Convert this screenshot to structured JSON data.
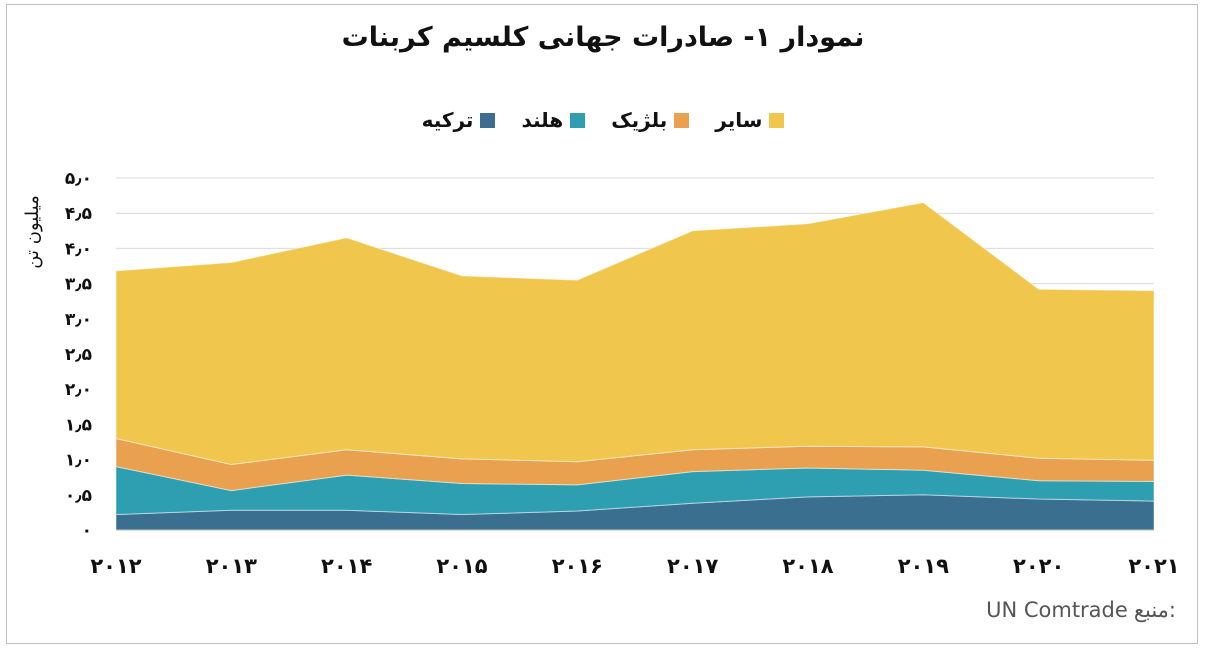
{
  "chart_data": {
    "type": "area",
    "stacked": true,
    "title": "نمودار ۱- صادرات جهانی کلسیم کربنات",
    "ylabel": "میلیون تن",
    "xlabel": "",
    "ylim": [
      0,
      5
    ],
    "yticks": [
      "۰",
      "۰٫۵",
      "۱٫۰",
      "۱٫۵",
      "۲٫۰",
      "۲٫۵",
      "۳٫۰",
      "۳٫۵",
      "۴٫۰",
      "۴٫۵",
      "۵٫۰"
    ],
    "ytick_values": [
      0,
      0.5,
      1,
      1.5,
      2,
      2.5,
      3,
      3.5,
      4,
      4.5,
      5
    ],
    "categories": [
      "۲۰۱۲",
      "۲۰۱۳",
      "۲۰۱۴",
      "۲۰۱۵",
      "۲۰۱۶",
      "۲۰۱۷",
      "۲۰۱۸",
      "۲۰۱۹",
      "۲۰۲۰",
      "۲۰۲۱"
    ],
    "grid": true,
    "legend_position": "top",
    "series": [
      {
        "name": "ترکیه",
        "color": "#3a6f8f",
        "values": [
          0.22,
          0.28,
          0.28,
          0.22,
          0.27,
          0.38,
          0.47,
          0.5,
          0.44,
          0.41
        ]
      },
      {
        "name": "هلند",
        "color": "#2e9fb0",
        "values": [
          0.68,
          0.28,
          0.5,
          0.44,
          0.37,
          0.45,
          0.41,
          0.35,
          0.26,
          0.28
        ]
      },
      {
        "name": "بلژیک",
        "color": "#e9a04f",
        "values": [
          0.4,
          0.37,
          0.36,
          0.35,
          0.33,
          0.31,
          0.31,
          0.33,
          0.32,
          0.3
        ]
      },
      {
        "name": "سایر",
        "color": "#f0c64d",
        "values": [
          2.38,
          2.87,
          3.01,
          2.6,
          2.58,
          3.11,
          3.16,
          3.47,
          2.4,
          2.41
        ]
      }
    ]
  },
  "source": {
    "label": "منبع:",
    "value": "UN Comtrade"
  }
}
